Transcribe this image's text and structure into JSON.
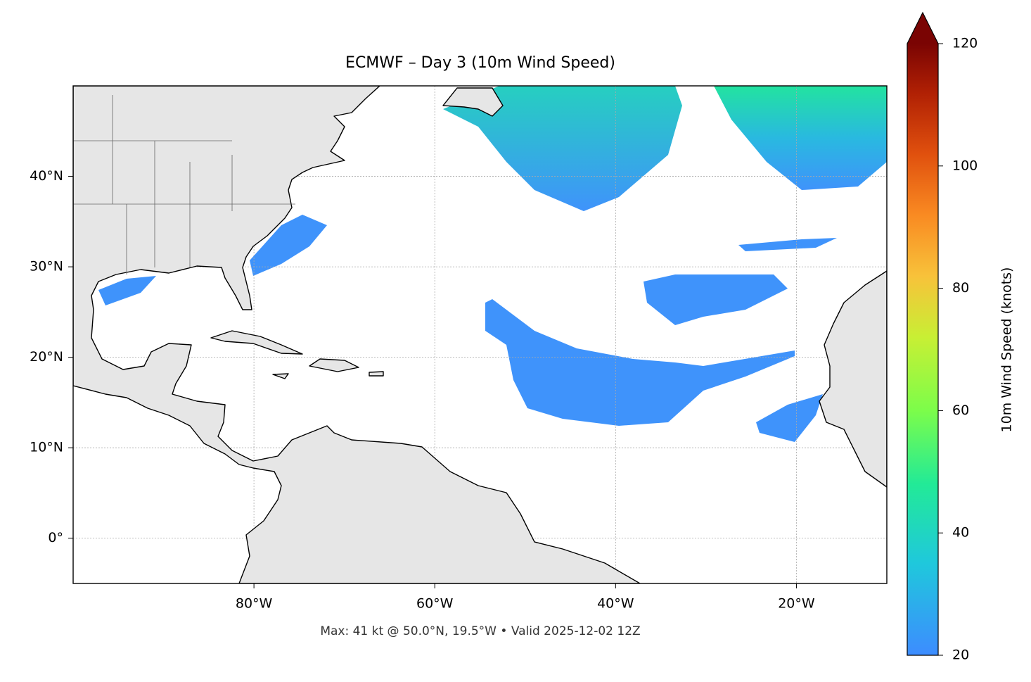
{
  "map": {
    "title": "ECMWF – Day 3 (10m Wind Speed)",
    "footer": "Max: 41 kt @ 50.0°N, 19.5°W • Valid 2025-12-02 12Z",
    "lon_range": [
      -100,
      -10
    ],
    "lat_range": [
      -5,
      50
    ],
    "lon_ticks": [
      {
        "value": -80,
        "label": "80°W"
      },
      {
        "value": -60,
        "label": "60°W"
      },
      {
        "value": -40,
        "label": "40°W"
      },
      {
        "value": -20,
        "label": "20°W"
      }
    ],
    "lat_ticks": [
      {
        "value": 0,
        "label": "0°"
      },
      {
        "value": 10,
        "label": "10°N"
      },
      {
        "value": 20,
        "label": "20°N"
      },
      {
        "value": 30,
        "label": "30°N"
      },
      {
        "value": 40,
        "label": "40°N"
      }
    ],
    "grid": true
  },
  "colorbar": {
    "label": "10m Wind Speed (knots)",
    "range": [
      20,
      120
    ],
    "ticks": [
      20,
      40,
      60,
      80,
      100,
      120
    ],
    "extend": "max"
  }
}
